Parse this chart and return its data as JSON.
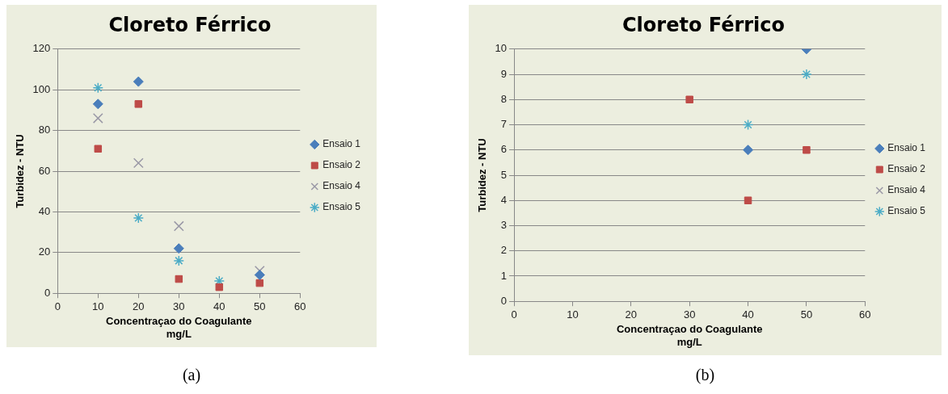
{
  "chart_data": [
    {
      "type": "scatter",
      "title": "Cloreto Férrico",
      "xlabel": "Concentraçao do Coagulante\nmg/L",
      "ylabel": "Turbidez - NTU",
      "x": [
        10,
        20,
        30,
        40,
        50
      ],
      "xlim": [
        0,
        60
      ],
      "xticks": [
        0,
        10,
        20,
        30,
        40,
        50,
        60
      ],
      "ylim": [
        0,
        120
      ],
      "yticks": [
        0,
        20,
        40,
        60,
        80,
        100,
        120
      ],
      "grid": "y",
      "legend": "right",
      "annotations": [
        "(a)"
      ],
      "series": [
        {
          "name": "Ensaio 1",
          "color": "#4a7ebb",
          "marker": "diamond",
          "values": [
            93,
            104,
            22,
            null,
            9
          ]
        },
        {
          "name": "Ensaio 2",
          "color": "#be4b48",
          "marker": "square",
          "values": [
            71,
            93,
            7,
            3,
            5
          ]
        },
        {
          "name": "Ensaio 4",
          "color": "#9a98a6",
          "marker": "cross",
          "values": [
            86,
            64,
            33,
            null,
            11
          ]
        },
        {
          "name": "Ensaio 5",
          "color": "#4bacc6",
          "values": [
            101,
            37,
            16,
            6,
            null
          ]
        }
      ]
    },
    {
      "type": "scatter",
      "title": "Cloreto Férrico",
      "xlabel": "Concentraçao do Coagulante\nmg/L",
      "ylabel": "Turbidez - NTU",
      "xlim": [
        0,
        60
      ],
      "xticks": [
        0,
        10,
        20,
        30,
        40,
        50,
        60
      ],
      "ylim": [
        0,
        10
      ],
      "yticks": [
        0,
        1,
        2,
        3,
        4,
        5,
        6,
        7,
        8,
        9,
        10
      ],
      "grid": "y",
      "legend": "right",
      "annotations": [
        "(b)"
      ],
      "series": [
        {
          "name": "Ensaio 1",
          "color": "#4a7ebb",
          "marker": "diamond",
          "x": [
            40,
            50
          ],
          "values": [
            6,
            10
          ]
        },
        {
          "name": "Ensaio 2",
          "color": "#be4b48",
          "marker": "square",
          "x": [
            30,
            40,
            50
          ],
          "values": [
            8,
            4,
            6
          ]
        },
        {
          "name": "Ensaio 4",
          "color": "#9a98a6",
          "marker": "cross"
        },
        {
          "name": "Ensaio 5",
          "color": "#4bacc6",
          "x": [
            40,
            50
          ],
          "values": [
            7,
            9
          ]
        }
      ]
    }
  ]
}
